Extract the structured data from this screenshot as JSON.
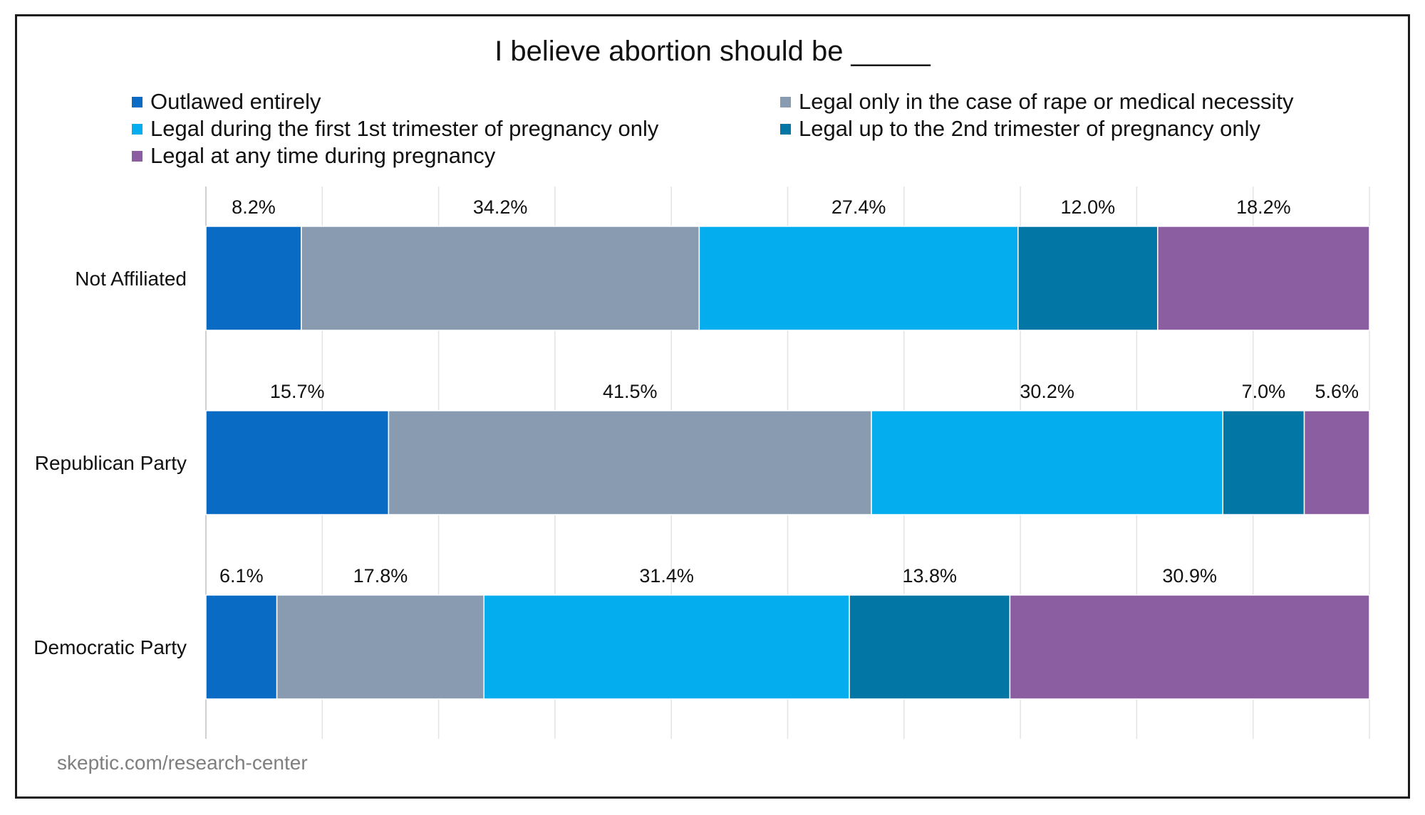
{
  "chart_data": {
    "type": "bar",
    "orientation": "horizontal",
    "stacked": true,
    "title": "I believe abortion should be _____",
    "categories": [
      "Not Affiliated",
      "Republican Party",
      "Democratic Party"
    ],
    "series": [
      {
        "name": "Outlawed entirely",
        "color": "#0a6bc4",
        "values": [
          8.2,
          15.7,
          6.1
        ],
        "labels": [
          "8.2%",
          "15.7%",
          "6.1%"
        ]
      },
      {
        "name": "Legal only in the case of rape or medical necessity",
        "color": "#889bb0",
        "values": [
          34.2,
          41.5,
          17.8
        ],
        "labels": [
          "34.2%",
          "41.5%",
          "17.8%"
        ]
      },
      {
        "name": "Legal during the first 1st trimester of pregnancy only",
        "color": "#04adee",
        "values": [
          27.4,
          30.2,
          31.4
        ],
        "labels": [
          "27.4%",
          "30.2%",
          "31.4%"
        ]
      },
      {
        "name": "Legal up to the 2nd trimester of pregnancy only",
        "color": "#0277a6",
        "values": [
          12.0,
          7.0,
          13.8
        ],
        "labels": [
          "12.0%",
          "7.0%",
          "13.8%"
        ]
      },
      {
        "name": "Legal at any time during pregnancy",
        "color": "#8a5ea0",
        "values": [
          18.2,
          5.6,
          30.9
        ],
        "labels": [
          "18.2%",
          "5.6%",
          "30.9%"
        ]
      }
    ],
    "xlim": [
      0,
      100
    ],
    "grid": true,
    "legend_position": "top",
    "source": "skeptic.com/research-center"
  }
}
